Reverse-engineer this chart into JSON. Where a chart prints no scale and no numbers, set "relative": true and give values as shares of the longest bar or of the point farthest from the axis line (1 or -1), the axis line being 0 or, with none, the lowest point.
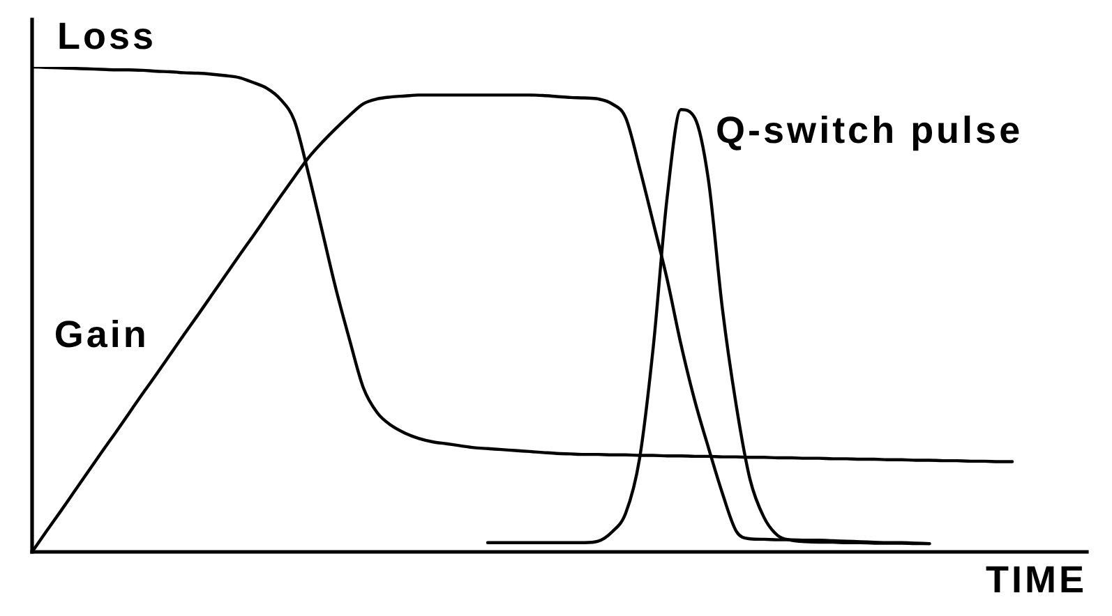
{
  "chart_data": {
    "type": "line",
    "xlabel": "TIME",
    "relative": true,
    "tick_labels": false,
    "categories": [
      null,
      null,
      null,
      null,
      null,
      null,
      null,
      null,
      null,
      null,
      null,
      null,
      null,
      null,
      null,
      null,
      null,
      null,
      null,
      null,
      null,
      null,
      null,
      null,
      null,
      null,
      null,
      null,
      null,
      null,
      null,
      null,
      null,
      null,
      null,
      null,
      null,
      null,
      null,
      null,
      null,
      null,
      null,
      null,
      null,
      null,
      null,
      null,
      null,
      null,
      null,
      null,
      null,
      null,
      null,
      null,
      null,
      null,
      null,
      null,
      null,
      null,
      null,
      null,
      null,
      null,
      null,
      null,
      null,
      null,
      null,
      null,
      null,
      null,
      null,
      null,
      null
    ],
    "series": [
      {
        "name": "Loss",
        "color": "#000000",
        "values": [
          1,
          0.999,
          0.998,
          0.997,
          0.996,
          0.995,
          0.994,
          0.994,
          0.993,
          0.991,
          0.99,
          0.988,
          0.987,
          0.985,
          0.982,
          0.978,
          0.968,
          0.956,
          0.933,
          0.889,
          0.782,
          0.663,
          0.543,
          0.437,
          0.338,
          0.287,
          0.261,
          0.245,
          0.234,
          0.227,
          0.223,
          0.219,
          0.215,
          0.213,
          0.211,
          0.209,
          0.207,
          0.205,
          0.203,
          0.202,
          0.201,
          0.201,
          0.2,
          0.2,
          0.199,
          0.199,
          0.198,
          0.198,
          0.197,
          0.197,
          0.196,
          0.196,
          0.195,
          0.195,
          0.194,
          0.194,
          0.193,
          0.193,
          0.192,
          0.192,
          0.191,
          0.191,
          0.19,
          0.19,
          0.189,
          0.189,
          0.188,
          0.188,
          0.187,
          0.187,
          0.186,
          0.186,
          null,
          null,
          null,
          null,
          null
        ]
      },
      {
        "name": "Gain",
        "color": "#000000",
        "values": [
          0,
          0.041,
          0.081,
          0.122,
          0.163,
          0.204,
          0.244,
          0.285,
          0.326,
          0.366,
          0.407,
          0.448,
          0.488,
          0.529,
          0.57,
          0.611,
          0.651,
          0.692,
          0.733,
          0.773,
          0.812,
          0.844,
          0.873,
          0.9,
          0.924,
          0.934,
          0.938,
          0.94,
          0.942,
          0.942,
          0.942,
          0.942,
          0.942,
          0.942,
          0.942,
          0.942,
          0.942,
          0.941,
          0.939,
          0.937,
          0.936,
          0.934,
          0.924,
          0.895,
          0.792,
          0.678,
          0.562,
          0.428,
          0.312,
          0.214,
          0.121,
          0.043,
          0.027,
          0.026,
          0.025,
          0.025,
          0.024,
          0.024,
          0.023,
          0.022,
          0.021,
          0.02,
          0.019,
          0.019,
          0.018,
          0.017,
          null,
          null,
          null,
          null,
          null,
          null,
          null,
          null,
          null,
          null,
          null
        ]
      },
      {
        "name": "Q-switch pulse",
        "color": "#000000",
        "values": [
          null,
          null,
          null,
          null,
          null,
          null,
          null,
          null,
          null,
          null,
          null,
          null,
          null,
          null,
          null,
          null,
          null,
          null,
          null,
          null,
          null,
          null,
          null,
          null,
          null,
          null,
          null,
          null,
          null,
          null,
          null,
          null,
          null,
          0.019,
          0.019,
          0.019,
          0.019,
          0.019,
          0.019,
          0.019,
          0.019,
          0.022,
          0.041,
          0.08,
          0.192,
          0.424,
          0.731,
          0.912,
          0.895,
          0.765,
          0.502,
          0.303,
          0.15,
          0.072,
          0.034,
          0.024,
          0.021,
          0.02,
          0.02,
          0.019,
          0.019,
          0.018,
          0.018,
          0.018,
          0.017,
          0.017,
          null,
          null,
          null,
          null,
          null,
          null,
          null,
          null,
          null,
          null,
          null
        ]
      }
    ]
  }
}
